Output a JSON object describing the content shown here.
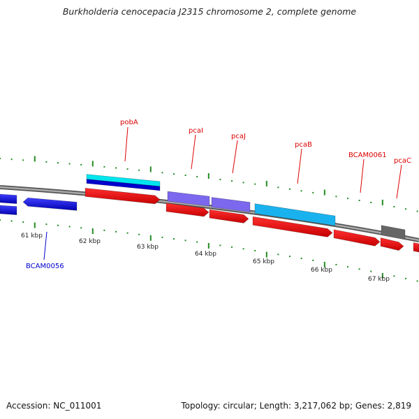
{
  "title": "Burkholderia cenocepacia J2315 chromosome 2, complete genome",
  "footer": {
    "accession": "Accession: NC_011001",
    "summary": "Topology: circular; Length: 3,217,062 bp; Genes: 2,819"
  },
  "scale_labels": [
    "61 kbp",
    "62 kbp",
    "63 kbp",
    "64 kbp",
    "65 kbp",
    "66 kbp",
    "67 kbp"
  ],
  "gene_labels": [
    {
      "text": "pobA",
      "color": "#dd0000"
    },
    {
      "text": "pcaI",
      "color": "#dd0000"
    },
    {
      "text": "pcaJ",
      "color": "#dd0000"
    },
    {
      "text": "pcaB",
      "color": "#dd0000"
    },
    {
      "text": "BCAM0061",
      "color": "#dd0000"
    },
    {
      "text": "pcaC",
      "color": "#dd0000"
    },
    {
      "text": "BCAM0056",
      "color": "#0000cc"
    }
  ],
  "colors": {
    "backbone": "#888888",
    "cds_forward": "#ee0000",
    "cds_reverse": "#0000dd",
    "pobA": "#00e5ee",
    "pcaI": "#7b68ee",
    "pcaJ": "#7b68ee",
    "pcaB": "#1ab2ee",
    "BCAM0061_top": "#666666",
    "tick": "#228b22"
  }
}
